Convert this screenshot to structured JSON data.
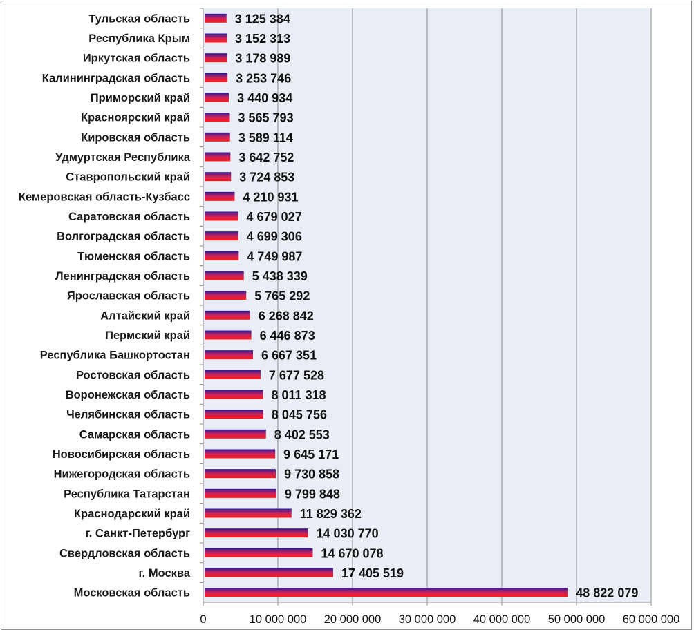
{
  "chart_data": {
    "type": "bar",
    "orientation": "horizontal",
    "title": "",
    "xlabel": "",
    "ylabel": "",
    "xlim": [
      0,
      60000000
    ],
    "x_ticks": [
      0,
      10000000,
      20000000,
      30000000,
      40000000,
      50000000,
      60000000
    ],
    "x_tick_labels": [
      "0",
      "10 000 000",
      "20 000 000",
      "30 000 000",
      "40 000 000",
      "50 000 000",
      "60 000 000"
    ],
    "grid": "vertical major gridlines",
    "legend": "none",
    "colors": {
      "plot_background": "#e9edf6",
      "bar_top": "#2c1b96",
      "bar_middle": "#c8245d",
      "bar_bottom": "#ff1a1a",
      "gridline": "#8c8c8c"
    },
    "categories": [
      "Тульская область",
      "Республика Крым",
      "Иркутская область",
      "Калининградская область",
      "Приморский край",
      "Красноярский край",
      "Кировская область",
      "Удмуртская Республика",
      "Ставропольский край",
      "Кемеровская область-Кузбасс",
      "Саратовская область",
      "Волгоградская область",
      "Тюменская область",
      "Ленинградская область",
      "Ярославская область",
      "Алтайский край",
      "Пермский край",
      "Республика Башкортостан",
      "Ростовская область",
      "Воронежская область",
      "Челябинская область",
      "Самарская область",
      "Новосибирская область",
      "Нижегородская область",
      "Республика Татарстан",
      "Краснодарский край",
      "г. Санкт-Петербург",
      "Свердловская область",
      "г. Москва",
      "Московская область"
    ],
    "values": [
      3125384,
      3152313,
      3178989,
      3253746,
      3440934,
      3565793,
      3589114,
      3642752,
      3724853,
      4210931,
      4679027,
      4699306,
      4749987,
      5438339,
      5765292,
      6268842,
      6446873,
      6667351,
      7677528,
      8011318,
      8045756,
      8402553,
      9645171,
      9730858,
      9799848,
      11829362,
      14030770,
      14670078,
      17405519,
      48822079
    ],
    "value_labels": [
      "3 125 384",
      "3 152 313",
      "3 178 989",
      "3 253 746",
      "3 440 934",
      "3 565 793",
      "3 589 114",
      "3 642 752",
      "3 724 853",
      "4 210 931",
      "4 679 027",
      "4 699 306",
      "4 749 987",
      "5 438 339",
      "5 765 292",
      "6 268 842",
      "6 446 873",
      "6 667 351",
      "7 677 528",
      "8 011 318",
      "8 045 756",
      "8 402 553",
      "9 645 171",
      "9 730 858",
      "9 799 848",
      "11 829 362",
      "14 030 770",
      "14 670 078",
      "17 405 519",
      "48 822 079"
    ]
  }
}
